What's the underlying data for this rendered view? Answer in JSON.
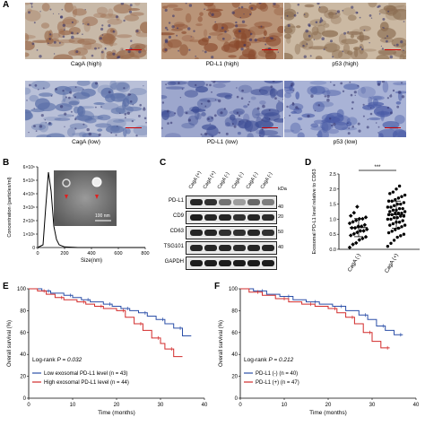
{
  "panels": {
    "A": {
      "label": "A",
      "images": [
        {
          "caption": "CagA (high)",
          "tint": "#9a6a4c",
          "bg": "#c8b9a8"
        },
        {
          "caption": "PD-L1 (high)",
          "tint": "#8a4b2e",
          "bg": "#b99478"
        },
        {
          "caption": "p53 (high)",
          "tint": "#8c6e52",
          "bg": "#cbb9a3"
        },
        {
          "caption": "CagA (low)",
          "tint": "#5a6fa8",
          "bg": "#b9c0d8"
        },
        {
          "caption": "PD-L1 (low)",
          "tint": "#3f4f96",
          "bg": "#9da7cd"
        },
        {
          "caption": "p53 (low)",
          "tint": "#4a5ca6",
          "bg": "#a9b3d6"
        }
      ]
    },
    "B": {
      "label": "B",
      "tem_scale": "100 nm",
      "chart_data": {
        "type": "line",
        "xlabel": "Size(nm)",
        "ylabel": "Concentration (particles/ml)",
        "x": [
          0,
          40,
          60,
          80,
          100,
          120,
          140,
          160,
          200,
          300,
          400,
          600,
          800
        ],
        "values": [
          0,
          200000.0,
          3000000.0,
          5600000.0,
          4200000.0,
          1600000.0,
          600000.0,
          200000.0,
          50000.0,
          0,
          0,
          0,
          0
        ],
        "xlim": [
          0,
          800
        ],
        "ylim": [
          0,
          6000000.0
        ],
        "xticks": [
          "0",
          "200",
          "400",
          "600",
          "800"
        ],
        "yticks": [
          "0",
          "1×10⁶",
          "2×10⁶",
          "3×10⁶",
          "4×10⁶",
          "5×10⁶",
          "6×10⁶"
        ]
      }
    },
    "C": {
      "label": "C",
      "lanes": [
        "CagA (+)",
        "CagA (+)",
        "CagA (-)",
        "CagA (-)",
        "CagA (-)",
        "CagA (-)"
      ],
      "kda_header": "kDa",
      "rows": [
        {
          "name": "PD-L1",
          "marker": "40",
          "intensity": [
            0.9,
            0.85,
            0.55,
            0.35,
            0.6,
            0.5
          ]
        },
        {
          "name": "CD9",
          "marker": "20",
          "intensity": [
            0.95,
            0.9,
            0.9,
            0.85,
            0.9,
            0.88
          ]
        },
        {
          "name": "CD63",
          "marker": "50",
          "intensity": [
            0.9,
            0.9,
            0.85,
            0.85,
            0.9,
            0.85
          ]
        },
        {
          "name": "TSG101",
          "marker": "40",
          "intensity": [
            0.9,
            0.9,
            0.9,
            0.88,
            0.9,
            0.9
          ]
        },
        {
          "name": "GAPDH",
          "marker": "",
          "intensity": [
            0.95,
            0.95,
            0.95,
            0.95,
            0.95,
            0.95
          ]
        }
      ]
    },
    "D": {
      "label": "D",
      "chart_data": {
        "type": "scatter",
        "ylabel": "Exosomal PD-L1 level relative to CD63",
        "categories": [
          "CagA (-)",
          "CagA (+)"
        ],
        "ylim": [
          0,
          2.5
        ],
        "yticks": [
          "0.0",
          "0.5",
          "1.0",
          "1.5",
          "2.0",
          "2.5"
        ],
        "significance": "***",
        "series": [
          {
            "values": [
              0.05,
              0.15,
              0.2,
              0.3,
              0.35,
              0.4,
              0.45,
              0.5,
              0.55,
              0.6,
              0.6,
              0.65,
              0.7,
              0.7,
              0.75,
              0.75,
              0.8,
              0.85,
              0.9,
              0.95,
              1.0,
              1.0,
              1.05,
              1.1,
              1.2,
              1.4
            ],
            "mean": 0.72,
            "sd": 0.3
          },
          {
            "values": [
              0.1,
              0.2,
              0.3,
              0.4,
              0.45,
              0.5,
              0.55,
              0.6,
              0.65,
              0.7,
              0.75,
              0.8,
              0.8,
              0.85,
              0.9,
              0.9,
              0.95,
              1.0,
              1.0,
              1.05,
              1.05,
              1.1,
              1.1,
              1.15,
              1.15,
              1.2,
              1.2,
              1.2,
              1.25,
              1.25,
              1.3,
              1.3,
              1.35,
              1.35,
              1.4,
              1.4,
              1.45,
              1.5,
              1.5,
              1.55,
              1.6,
              1.6,
              1.65,
              1.7,
              1.75,
              1.8,
              1.85,
              1.9,
              2.0,
              2.1
            ],
            "mean": 1.15,
            "sd": 0.45
          }
        ]
      }
    },
    "E": {
      "label": "E",
      "logrank_text": "Log-rank ",
      "logrank_p": "P = 0.032",
      "chart_data": {
        "type": "line",
        "xlabel": "Time (months)",
        "ylabel": "Overall survival (%)",
        "xlim": [
          0,
          40
        ],
        "ylim": [
          0,
          100
        ],
        "xticks": [
          "0",
          "10",
          "20",
          "30",
          "40"
        ],
        "yticks": [
          "0",
          "20",
          "40",
          "60",
          "80",
          "100"
        ],
        "series": [
          {
            "name": "Low exosomal PD-L1 level (n = 43)",
            "color": "#2b4fa8",
            "x": [
              0,
              3,
              5,
              8,
              10,
              12,
              14,
              17,
              19,
              21,
              23,
              25,
              27,
              29,
              31,
              33,
              35,
              37
            ],
            "y": [
              100,
              98,
              96,
              94,
              92,
              90,
              88,
              86,
              84,
              82,
              80,
              78,
              75,
              72,
              68,
              64,
              57,
              57
            ]
          },
          {
            "name": "High exosomal PD-L1 level (n = 44)",
            "color": "#d22b2b",
            "x": [
              0,
              2,
              4,
              6,
              8,
              11,
              13,
              15,
              17,
              20,
              22,
              24,
              26,
              28,
              30,
              31,
              33,
              35
            ],
            "y": [
              100,
              98,
              95,
              92,
              90,
              88,
              86,
              84,
              82,
              80,
              74,
              68,
              62,
              55,
              50,
              45,
              38,
              38
            ]
          }
        ]
      }
    },
    "F": {
      "label": "F",
      "logrank_text": "Log-rank ",
      "logrank_p": "P = 0.212",
      "chart_data": {
        "type": "line",
        "xlabel": "Time (months)",
        "ylabel": "Overall survival (%)",
        "xlim": [
          0,
          40
        ],
        "ylim": [
          0,
          100
        ],
        "xticks": [
          "0",
          "10",
          "20",
          "30",
          "40"
        ],
        "yticks": [
          "0",
          "20",
          "40",
          "60",
          "80",
          "100"
        ],
        "series": [
          {
            "name": "PD-L1 (-) (n = 40)",
            "color": "#2b4fa8",
            "x": [
              0,
              3,
              6,
              9,
              12,
              15,
              18,
              21,
              24,
              27,
              29,
              31,
              33,
              35,
              37
            ],
            "y": [
              100,
              98,
              95,
              93,
              90,
              88,
              86,
              84,
              80,
              76,
              72,
              66,
              62,
              58,
              58
            ]
          },
          {
            "name": "PD-L1 (+) (n = 47)",
            "color": "#d22b2b",
            "x": [
              0,
              2,
              5,
              8,
              11,
              14,
              17,
              20,
              22,
              24,
              26,
              28,
              30,
              32,
              34
            ],
            "y": [
              100,
              97,
              94,
              91,
              88,
              86,
              84,
              82,
              78,
              74,
              68,
              60,
              52,
              46,
              46
            ]
          }
        ]
      }
    }
  }
}
